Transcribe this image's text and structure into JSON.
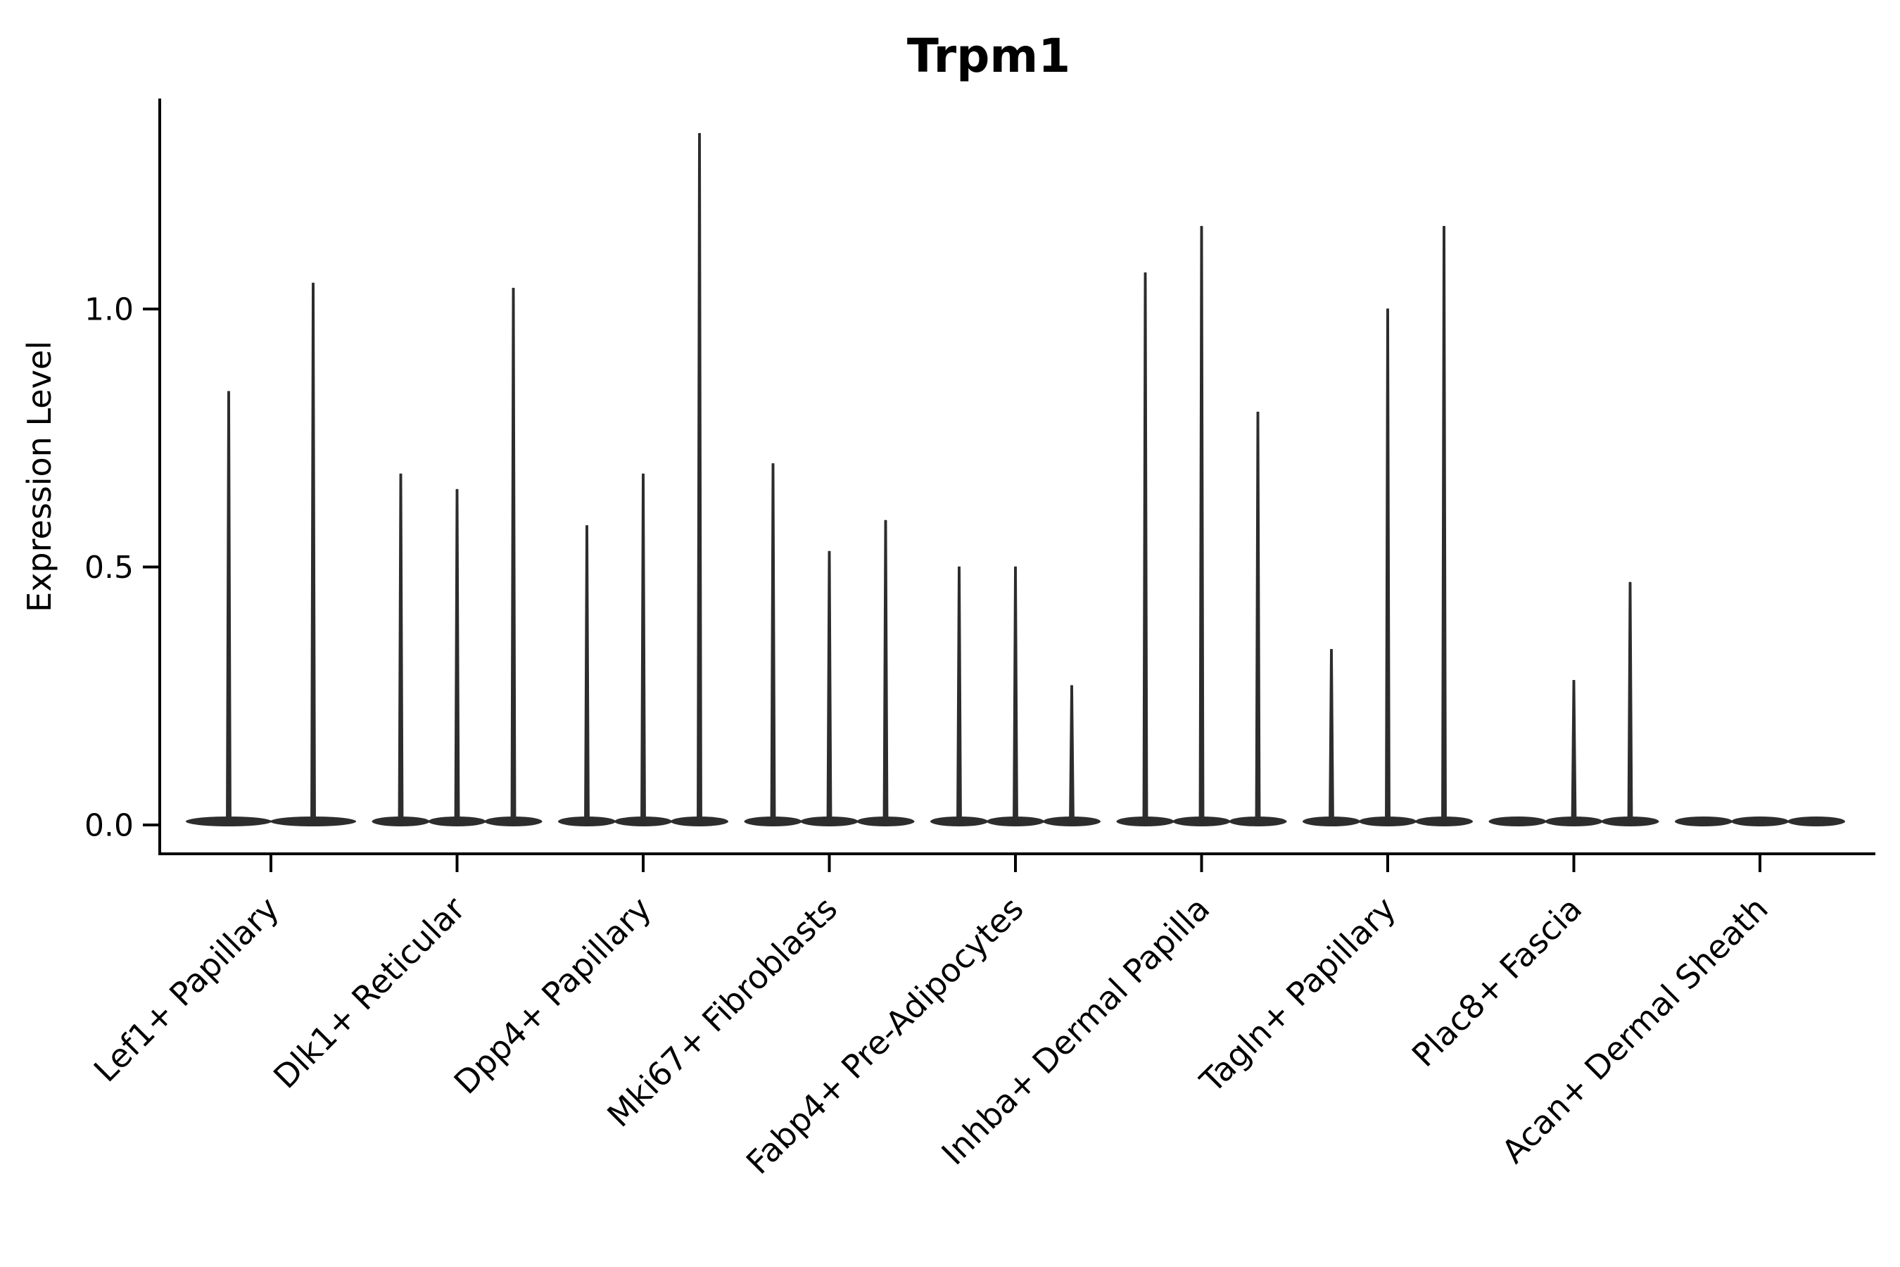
{
  "chart_data": {
    "type": "violin",
    "title": "Trpm1",
    "ylabel": "Expression Level",
    "xlabel": "",
    "ylim": [
      0,
      1.41
    ],
    "grid": false,
    "legend": null,
    "description": "Single-cell expression violin plot; each category holds 2-3 needle-thin violins (most cells at 0, flat body on baseline) whose spike tops reach the listed maximum expression values.",
    "yticks": [
      {
        "value": 0.0,
        "label": "0.0"
      },
      {
        "value": 0.5,
        "label": "0.5"
      },
      {
        "value": 1.0,
        "label": "1.0"
      }
    ],
    "categories": [
      {
        "label": "Lef1+ Papillary",
        "violin_max_values": [
          0.84,
          1.05
        ]
      },
      {
        "label": "Dlk1+ Reticular",
        "violin_max_values": [
          0.68,
          0.65,
          1.04
        ]
      },
      {
        "label": "Dpp4+ Papillary",
        "violin_max_values": [
          0.58,
          0.68,
          1.34
        ]
      },
      {
        "label": "Mki67+ Fibroblasts",
        "violin_max_values": [
          0.7,
          0.53,
          0.59
        ]
      },
      {
        "label": "Fabp4+ Pre-Adipocytes",
        "violin_max_values": [
          0.5,
          0.5,
          0.27
        ]
      },
      {
        "label": "Inhba+ Dermal Papilla",
        "violin_max_values": [
          1.07,
          1.16,
          0.8
        ]
      },
      {
        "label": "Tagln+ Papillary",
        "violin_max_values": [
          0.34,
          1.0,
          1.16
        ]
      },
      {
        "label": "Plac8+ Fascia",
        "violin_max_values": [
          0.0,
          0.28,
          0.47
        ]
      },
      {
        "label": "Acan+ Dermal Sheath",
        "violin_max_values": [
          0.0,
          0.0,
          0.0
        ]
      }
    ],
    "colors": {
      "violin": "#2d2d2d",
      "axis": "#000000",
      "text": "#000000",
      "background": "#ffffff"
    }
  }
}
